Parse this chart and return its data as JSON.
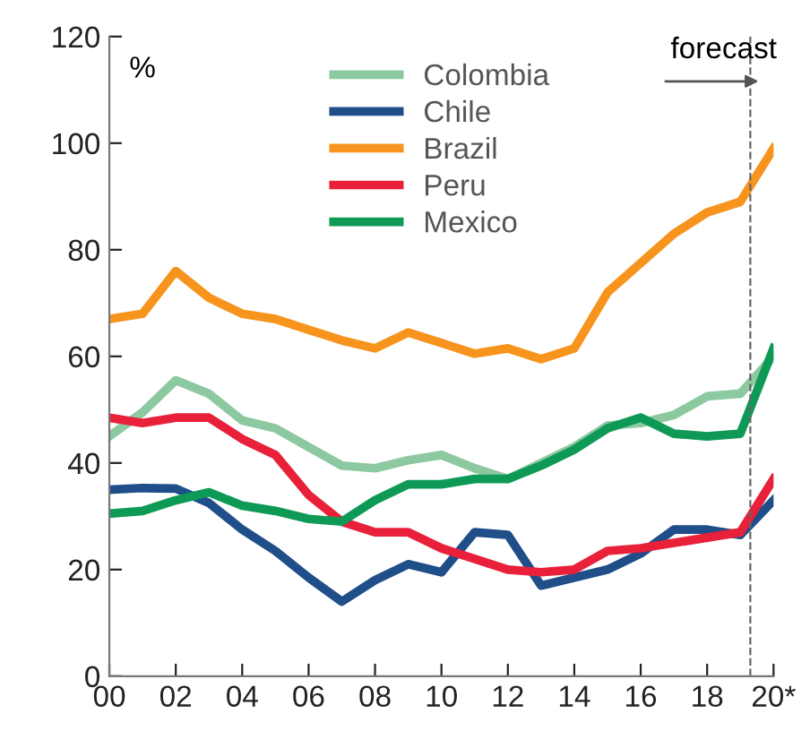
{
  "chart_data": {
    "type": "line",
    "ylabel": "%",
    "x": [
      0,
      1,
      2,
      3,
      4,
      5,
      6,
      7,
      8,
      9,
      10,
      11,
      12,
      13,
      14,
      15,
      16,
      17,
      18,
      19,
      20
    ],
    "series": [
      {
        "name": "Colombia",
        "color": "#8cc8a0",
        "values": [
          45,
          49.5,
          55.5,
          53,
          48,
          46.5,
          43,
          39.5,
          39,
          40.5,
          41.5,
          39,
          37,
          40,
          43,
          47,
          47.5,
          49,
          52.5,
          53,
          60
        ]
      },
      {
        "name": "Chile",
        "color": "#1f4e89",
        "values": [
          35,
          35.3,
          35.2,
          32.5,
          27.5,
          23.5,
          18.5,
          14,
          18,
          21,
          19.5,
          27,
          26.5,
          17,
          18.5,
          20,
          23,
          27.5,
          27.5,
          26.5,
          33
        ]
      },
      {
        "name": "Brazil",
        "color": "#f7941d",
        "values": [
          67,
          68,
          76,
          71,
          68,
          67,
          65,
          63,
          61.5,
          64.5,
          62.5,
          60.5,
          61.5,
          59.5,
          61.5,
          72,
          77.5,
          83,
          87,
          89,
          99
        ]
      },
      {
        "name": "Peru",
        "color": "#e8203a",
        "values": [
          48.5,
          47.5,
          48.5,
          48.5,
          44.5,
          41.5,
          34,
          29,
          27,
          27,
          24,
          22,
          20,
          19.5,
          20,
          23.5,
          24,
          25,
          26,
          27,
          37
        ]
      },
      {
        "name": "Mexico",
        "color": "#0e9a56",
        "values": [
          30.5,
          31,
          33,
          34.5,
          32,
          31,
          29.5,
          29,
          33,
          36,
          36,
          37,
          37,
          39.5,
          42.5,
          46.5,
          48.5,
          45.5,
          45,
          45.5,
          61.5
        ]
      }
    ],
    "xlim": [
      0,
      20
    ],
    "xticks": [
      {
        "value": 0,
        "label": "00"
      },
      {
        "value": 2,
        "label": "02"
      },
      {
        "value": 4,
        "label": "04"
      },
      {
        "value": 6,
        "label": "06"
      },
      {
        "value": 8,
        "label": "08"
      },
      {
        "value": 10,
        "label": "10"
      },
      {
        "value": 12,
        "label": "12"
      },
      {
        "value": 14,
        "label": "14"
      },
      {
        "value": 16,
        "label": "16"
      },
      {
        "value": 18,
        "label": "18"
      },
      {
        "value": 20,
        "label": "20*"
      }
    ],
    "ylim": [
      0,
      120
    ],
    "yticks": [
      0,
      20,
      40,
      60,
      80,
      100,
      120
    ],
    "ref_lines": [
      {
        "axis": "x",
        "value": 19.3,
        "label": "forecast",
        "color": "#666666",
        "line_style": "dashed"
      }
    ],
    "grid": false,
    "legend": "top",
    "marker": "none",
    "line_style": "solid"
  }
}
